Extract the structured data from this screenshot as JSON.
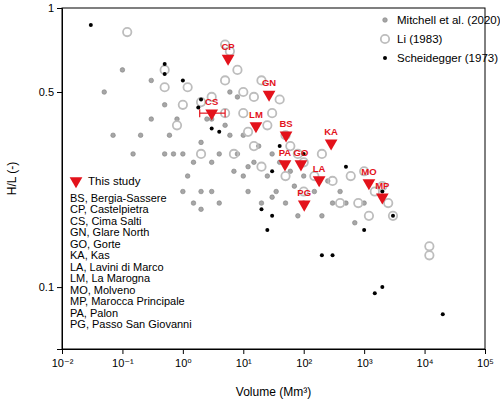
{
  "chart_data": {
    "type": "scatter",
    "x_label": "Volume (Mm³)",
    "y_label": "H/L (-)",
    "log": true,
    "legend": "upper right",
    "xlim": [
      0.01,
      100000
    ],
    "ylim": [
      0.06,
      1
    ],
    "xticks": [
      {
        "value": 0.01,
        "label": "10⁻²"
      },
      {
        "value": 0.1,
        "label": "10⁻¹"
      },
      {
        "value": 1,
        "label": "10⁰"
      },
      {
        "value": 10,
        "label": "10¹"
      },
      {
        "value": 100,
        "label": "10²"
      },
      {
        "value": 1000,
        "label": "10³"
      },
      {
        "value": 10000,
        "label": "10⁴"
      },
      {
        "value": 100000,
        "label": "10⁵"
      }
    ],
    "yticks": [
      0.1,
      0.5,
      1
    ],
    "series": [
      {
        "name": "Mitchell et al. (2020)",
        "color": "#a6a6a6",
        "marker": "circle",
        "x": [
          0.1,
          0.3,
          0.3,
          0.5,
          0.6,
          0.8,
          1,
          1.2,
          1.5,
          2,
          2,
          2.5,
          3,
          4,
          4,
          5,
          6,
          7,
          8,
          10,
          10,
          12,
          15,
          18,
          20,
          25,
          30,
          35,
          40,
          50,
          60,
          70,
          80,
          100,
          100,
          150,
          200,
          250,
          300,
          400,
          500,
          700,
          1000,
          0.2,
          0.15,
          0.05,
          0.07,
          0.5,
          1,
          3,
          6,
          8,
          0.7,
          2,
          1.5,
          12,
          30,
          3
        ],
        "values": [
          0.6,
          0.55,
          0.4,
          0.45,
          0.35,
          0.4,
          0.3,
          0.25,
          0.28,
          0.33,
          0.22,
          0.4,
          0.28,
          0.3,
          0.2,
          0.38,
          0.35,
          0.26,
          0.3,
          0.25,
          0.35,
          0.22,
          0.28,
          0.32,
          0.2,
          0.25,
          0.3,
          0.22,
          0.28,
          0.2,
          0.26,
          0.23,
          0.18,
          0.25,
          0.2,
          0.22,
          0.18,
          0.24,
          0.2,
          0.22,
          0.2,
          0.17,
          0.2,
          0.35,
          0.3,
          0.5,
          0.35,
          0.3,
          0.22,
          0.4,
          0.5,
          0.48,
          0.3,
          0.19,
          0.2,
          0.27,
          0.21,
          0.22
        ]
      },
      {
        "name": "Li (1983)",
        "color": "#bdbdbd",
        "marker": "hollow-circle",
        "x": [
          0.12,
          0.5,
          0.5,
          1,
          1.2,
          2,
          3,
          5,
          5,
          6,
          8,
          10,
          10,
          12,
          15,
          20,
          25,
          30,
          40,
          50,
          50,
          60,
          80,
          100,
          100,
          150,
          200,
          300,
          400,
          600,
          800,
          1000,
          1200,
          1500,
          2000,
          2500,
          3000,
          12000,
          12000,
          0.8,
          2,
          7,
          15,
          5,
          20
        ],
        "values": [
          0.82,
          0.6,
          0.52,
          0.45,
          0.52,
          0.46,
          0.48,
          0.74,
          0.55,
          0.7,
          0.6,
          0.5,
          0.42,
          0.36,
          0.48,
          0.55,
          0.38,
          0.42,
          0.47,
          0.35,
          0.25,
          0.32,
          0.3,
          0.28,
          0.22,
          0.25,
          0.3,
          0.24,
          0.2,
          0.25,
          0.2,
          0.26,
          0.18,
          0.22,
          0.23,
          0.2,
          0.18,
          0.14,
          0.13,
          0.38,
          0.3,
          0.3,
          0.32,
          0.42,
          0.27
        ]
      },
      {
        "name": "Scheidegger (1973)",
        "color": "#000000",
        "marker": "dot",
        "x": [
          0.03,
          0.5,
          0.5,
          1,
          2,
          1.8,
          3,
          4,
          30,
          40,
          100,
          500,
          1000,
          2000,
          3000,
          200,
          300,
          1500,
          2000,
          20000,
          30,
          25,
          20
        ],
        "values": [
          0.87,
          0.63,
          0.58,
          0.55,
          0.47,
          0.44,
          0.37,
          0.36,
          0.26,
          0.32,
          0.3,
          0.27,
          0.16,
          0.22,
          0.18,
          0.13,
          0.13,
          0.095,
          0.1,
          0.08,
          0.18,
          0.16,
          0.19
        ]
      },
      {
        "name": "This study",
        "color": "#e3121b",
        "marker": "triangle-down",
        "legend": "lower left",
        "labels": [
          "BS",
          "CP",
          "CS",
          "GN",
          "GO",
          "KA",
          "LA",
          "LM",
          "MO",
          "MP",
          "PA",
          "PG"
        ],
        "x": [
          51,
          5.6,
          3.0,
          26.7,
          90,
          284,
          180,
          16.2,
          1200,
          2000,
          49,
          102
        ],
        "values": [
          0.35,
          0.66,
          0.42,
          0.49,
          0.276,
          0.328,
          0.242,
          0.378,
          0.236,
          0.21,
          0.276,
          0.198
        ],
        "x_err": [
          null,
          null,
          [
            1.9,
            5.0
          ],
          null,
          null,
          null,
          null,
          null,
          null,
          null,
          null,
          null
        ]
      }
    ],
    "annotations": [
      "BS, Bergia-Sassere",
      "CP, Castelpietra",
      "CS, Cima Salti",
      "GN, Glare North",
      "GO, Gorte",
      "KA, Kas",
      "LA, Lavini di Marco",
      "LM, La Marogna",
      "MO, Molveno",
      "MP, Marocca Principale",
      "PA, Palon",
      "PG, Passo San Giovanni"
    ]
  }
}
